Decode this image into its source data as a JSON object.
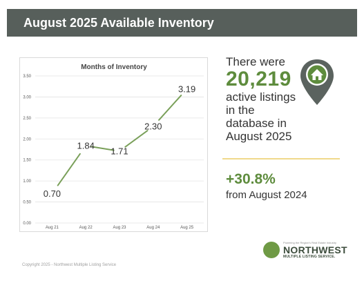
{
  "header": {
    "title": "August 2025 Available Inventory"
  },
  "chart_data": {
    "type": "line",
    "title": "Months of Inventory",
    "categories": [
      "Aug 21",
      "Aug 22",
      "Aug 23",
      "Aug 24",
      "Aug 25"
    ],
    "series": [
      {
        "values": [
          0.7,
          1.84,
          1.71,
          2.3,
          3.19
        ]
      }
    ],
    "data_labels": [
      "0.70",
      "1.84",
      "1.71",
      "2.30",
      "3.19"
    ],
    "ylim": [
      0,
      3.5
    ],
    "y_ticks": [
      "0.00",
      "0.50",
      "1.00",
      "1.50",
      "2.00",
      "2.50",
      "3.00",
      "3.50"
    ],
    "grid": true,
    "line_color": "#7aa05a",
    "xlabel": "",
    "ylabel": ""
  },
  "stats": {
    "prefix": "There were",
    "listing_count": "20,219",
    "suffix": "active listings in the database in August 2025",
    "change_value": "+30.8%",
    "change_label": "from August 2024"
  },
  "icons": {
    "pin": "home-location-pin-icon"
  },
  "logo": {
    "tagline": "Powering the Region's Real Estate Industry",
    "name": "NORTHWEST",
    "sub": "MULTIPLE LISTING SERVICE."
  },
  "footer": {
    "copyright": "Copyright 2025 - Northwest Multiple Listing Service"
  },
  "colors": {
    "header_bg": "#575f5b",
    "accent_green": "#5e8c3d",
    "divider": "#f0d98a"
  }
}
